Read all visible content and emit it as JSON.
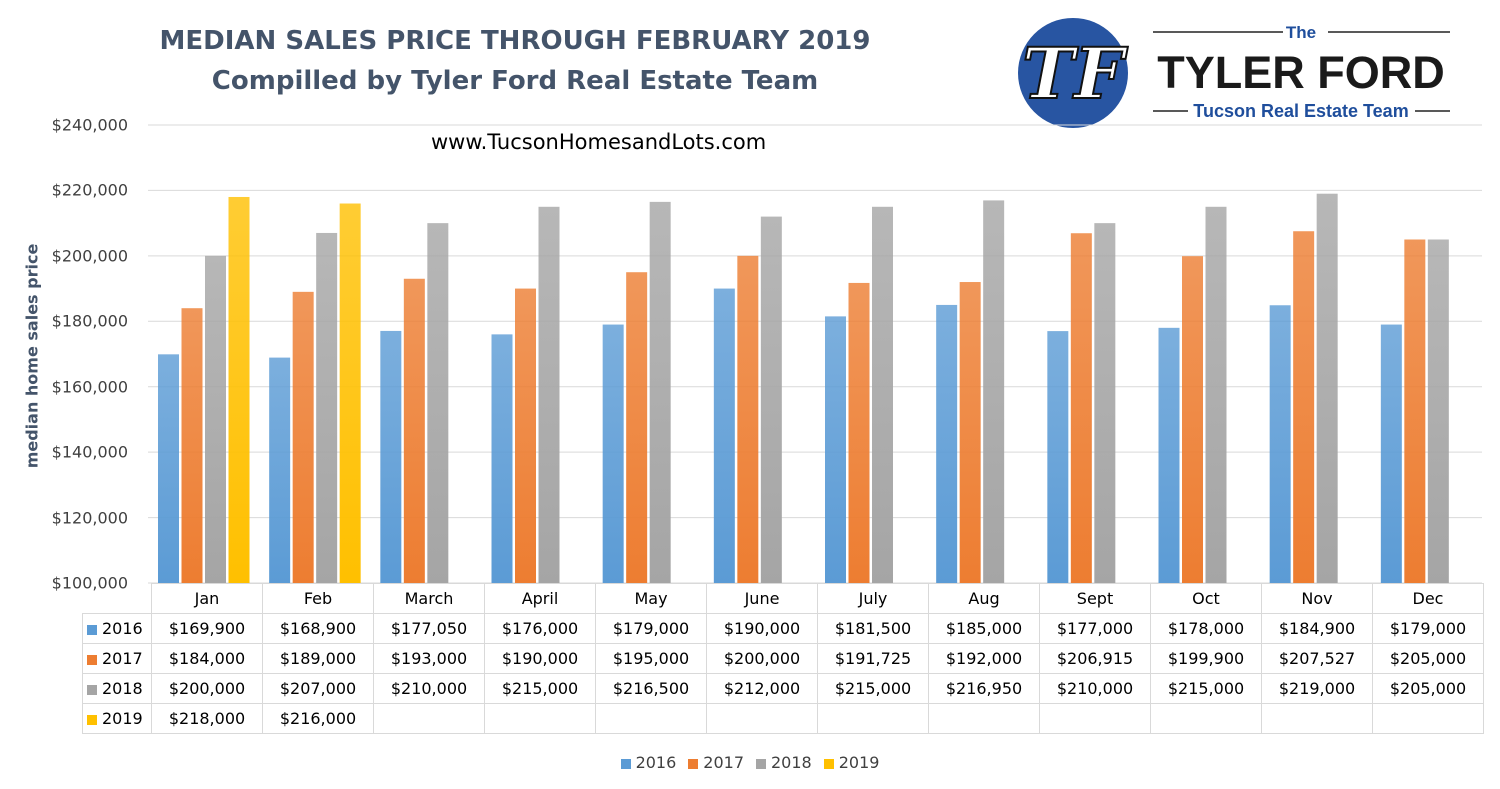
{
  "header": {
    "title": "MEDIAN SALES PRICE THROUGH FEBRUARY 2019",
    "subtitle": "Compilled by Tyler Ford Real Estate Team",
    "website": "www.TucsonHomesandLots.com"
  },
  "logo": {
    "monogram": "TF",
    "the": "The",
    "name": "TYLER FORD",
    "tagline": "Tucson Real Estate Team",
    "circle_color": "#2855a2",
    "text_color": "#1a1a1a",
    "accent_color": "#1f4e9c"
  },
  "chart_data": {
    "type": "bar",
    "title": "MEDIAN SALES PRICE THROUGH FEBRUARY 2019",
    "ylabel": "median home sales price",
    "ylim": [
      100000,
      240000
    ],
    "yticks": [
      "$100,000",
      "$120,000",
      "$140,000",
      "$160,000",
      "$180,000",
      "$200,000",
      "$220,000",
      "$240,000"
    ],
    "ytick_values": [
      100000,
      120000,
      140000,
      160000,
      180000,
      200000,
      220000,
      240000
    ],
    "grid": true,
    "legend_position": "bottom",
    "categories": [
      "Jan",
      "Feb",
      "March",
      "April",
      "May",
      "June",
      "July",
      "Aug",
      "Sept",
      "Oct",
      "Nov",
      "Dec"
    ],
    "series": [
      {
        "name": "2016",
        "color": "#5b9bd5",
        "values": [
          169900,
          168900,
          177050,
          176000,
          179000,
          190000,
          181500,
          185000,
          177000,
          178000,
          184900,
          179000
        ],
        "labels": [
          "$169,900",
          "$168,900",
          "$177,050",
          "$176,000",
          "$179,000",
          "$190,000",
          "$181,500",
          "$185,000",
          "$177,000",
          "$178,000",
          "$184,900",
          "$179,000"
        ]
      },
      {
        "name": "2017",
        "color": "#ed7d31",
        "values": [
          184000,
          189000,
          193000,
          190000,
          195000,
          200000,
          191725,
          192000,
          206915,
          199900,
          207527,
          205000
        ],
        "labels": [
          "$184,000",
          "$189,000",
          "$193,000",
          "$190,000",
          "$195,000",
          "$200,000",
          "$191,725",
          "$192,000",
          "$206,915",
          "$199,900",
          "$207,527",
          "$205,000"
        ]
      },
      {
        "name": "2018",
        "color": "#a5a5a5",
        "values": [
          200000,
          207000,
          210000,
          215000,
          216500,
          212000,
          215000,
          216950,
          210000,
          215000,
          219000,
          205000
        ],
        "labels": [
          "$200,000",
          "$207,000",
          "$210,000",
          "$215,000",
          "$216,500",
          "$212,000",
          "$215,000",
          "$216,950",
          "$210,000",
          "$215,000",
          "$219,000",
          "$205,000"
        ]
      },
      {
        "name": "2019",
        "color": "#ffc000",
        "values": [
          218000,
          216000,
          null,
          null,
          null,
          null,
          null,
          null,
          null,
          null,
          null,
          null
        ],
        "labels": [
          "$218,000",
          "$216,000",
          "",
          "",
          "",
          "",
          "",
          "",
          "",
          "",
          "",
          ""
        ]
      }
    ]
  }
}
